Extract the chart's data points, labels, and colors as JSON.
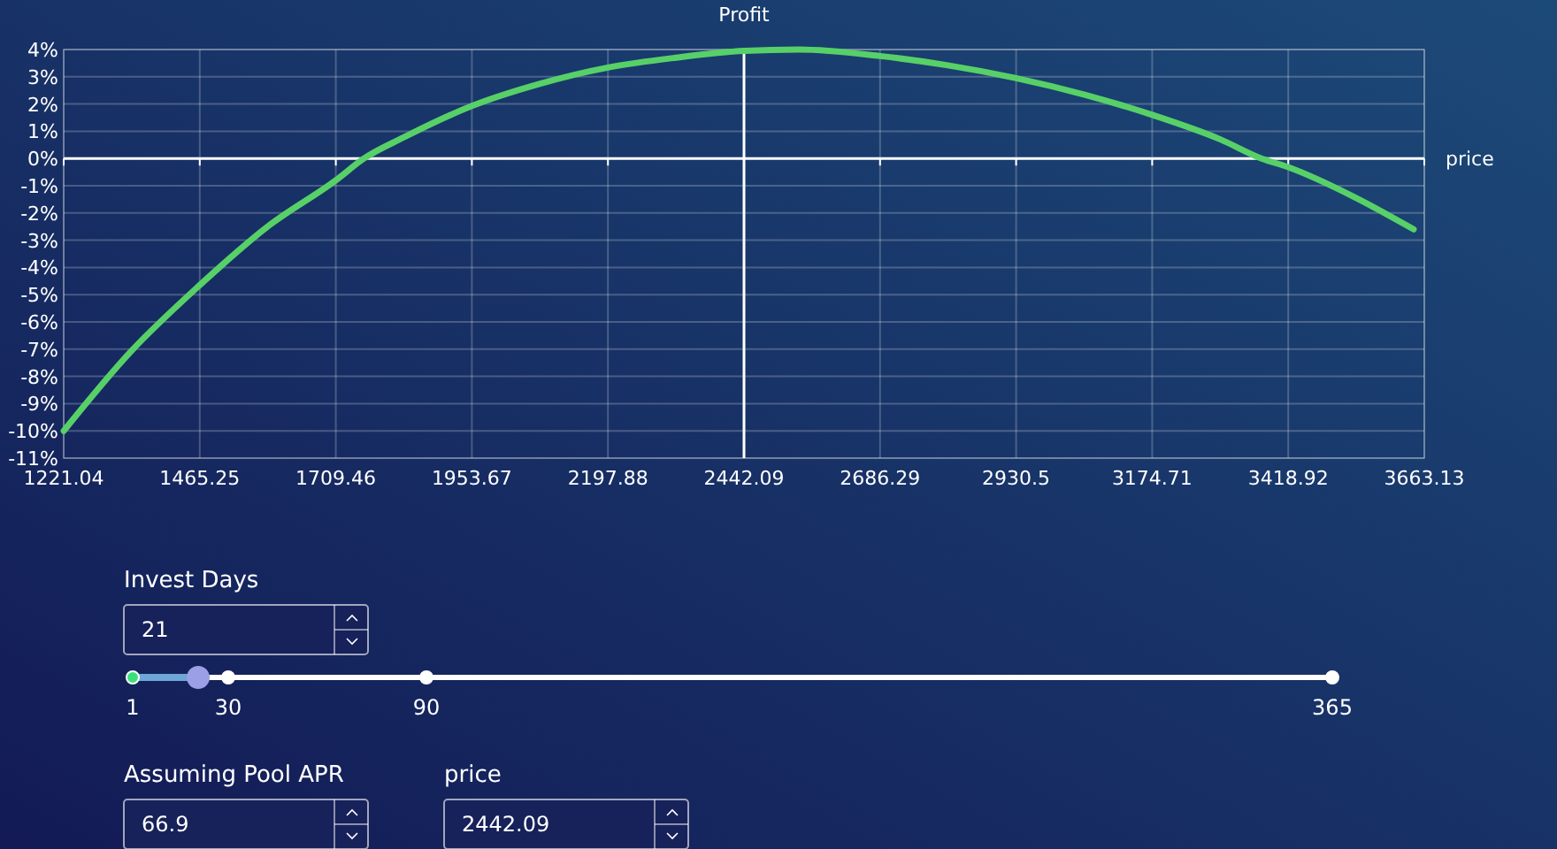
{
  "chart_data": [
    {
      "type": "line",
      "title": "Profit",
      "xlabel": "price",
      "xlim": [
        1221.04,
        3663.13
      ],
      "ylim": [
        -11,
        4
      ],
      "xticks": [
        1221.04,
        1465.25,
        1709.46,
        1953.67,
        2197.88,
        2442.09,
        2686.29,
        2930.5,
        3174.71,
        3418.92,
        3663.13
      ],
      "yticks": [
        {
          "value": -11,
          "label": "-11%"
        },
        {
          "value": -10,
          "label": "-10%"
        },
        {
          "value": -9,
          "label": "-9%"
        },
        {
          "value": -8,
          "label": "-8%"
        },
        {
          "value": -7,
          "label": "-7%"
        },
        {
          "value": -6,
          "label": "-6%"
        },
        {
          "value": -5,
          "label": "-5%"
        },
        {
          "value": -4,
          "label": "-4%"
        },
        {
          "value": -3,
          "label": "-3%"
        },
        {
          "value": -2,
          "label": "-2%"
        },
        {
          "value": -1,
          "label": "-1%"
        },
        {
          "value": 0,
          "label": "0%"
        },
        {
          "value": 1,
          "label": "1%"
        },
        {
          "value": 2,
          "label": "2%"
        },
        {
          "value": 3,
          "label": "3%"
        },
        {
          "value": 4,
          "label": "4%"
        }
      ],
      "grid": true,
      "marker": "none",
      "line_style": "solid",
      "series": [
        {
          "color": "#57d068",
          "x": [
            1221.04,
            1341,
            1465.25,
            1587,
            1709.46,
            1760,
            1831,
            1953.67,
            2075,
            2197.88,
            2320,
            2442.09,
            2541,
            2686.29,
            2808,
            2930.5,
            3052,
            3174.71,
            3297,
            3371,
            3418.92,
            3540,
            3644
          ],
          "values": [
            -10.0,
            -7.1,
            -4.65,
            -2.5,
            -0.8,
            0,
            0.77,
            1.93,
            2.74,
            3.34,
            3.7,
            3.95,
            4.0,
            3.76,
            3.42,
            2.95,
            2.35,
            1.6,
            0.7,
            0,
            -0.32,
            -1.44,
            -2.6
          ]
        }
      ]
    },
    {
      "type": "other",
      "annotations": [
        "Invest Days",
        "21",
        "Assuming Pool APR",
        "66.9",
        "price",
        "2442.09",
        "1",
        "30",
        "90",
        "365"
      ]
    }
  ]
}
